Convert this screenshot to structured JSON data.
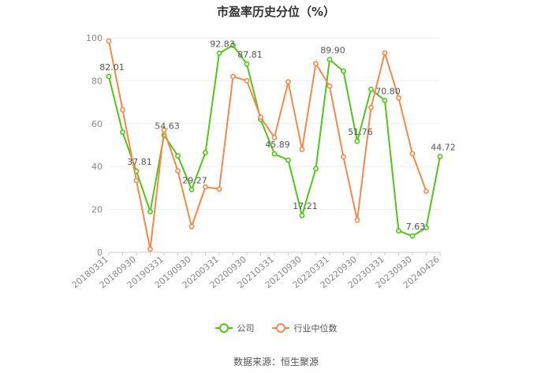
{
  "chart_data": {
    "type": "line",
    "title": "市盈率历史分位（%）",
    "source": "数据来源：恒生聚源",
    "ylim": [
      0,
      100
    ],
    "yticks": [
      0,
      20,
      40,
      60,
      80,
      100
    ],
    "x": [
      "20180331",
      "20180630",
      "20180930",
      "20181231",
      "20190331",
      "20190630",
      "20190930",
      "20191231",
      "20200331",
      "20200630",
      "20200930",
      "20201231",
      "20210331",
      "20210630",
      "20210930",
      "20211231",
      "20220331",
      "20220630",
      "20220930",
      "20221231",
      "20230331",
      "20230630",
      "20230930",
      "20231231",
      "20240426"
    ],
    "xticks": [
      "20180331",
      "20180930",
      "20190331",
      "20190930",
      "20200331",
      "20200930",
      "20210331",
      "20210930",
      "20220331",
      "20220930",
      "20230331",
      "20230930",
      "20240426"
    ],
    "grid": true,
    "legend_position": "bottom",
    "series": [
      {
        "name": "公司",
        "color": "#52c41a",
        "values": [
          82.01,
          56,
          37.81,
          19,
          54.63,
          45,
          29.27,
          46.5,
          92.83,
          96.5,
          87.81,
          62,
          45.89,
          43,
          17.21,
          39,
          89.9,
          84.5,
          51.76,
          76,
          70.8,
          10,
          7.63,
          11.5,
          44.72
        ]
      },
      {
        "name": "行业中位数",
        "color": "#f5884b",
        "values": [
          98.5,
          66.5,
          33.5,
          1.5,
          57,
          38,
          12,
          30.5,
          29.5,
          82,
          80,
          63,
          53.5,
          79.5,
          48,
          88,
          77.5,
          44.5,
          15,
          67.5,
          93,
          72,
          46,
          28.5,
          null
        ]
      }
    ],
    "annotations": [
      {
        "series": 0,
        "index": 0,
        "text": "82.01"
      },
      {
        "series": 0,
        "index": 2,
        "text": "37.81"
      },
      {
        "series": 0,
        "index": 4,
        "text": "54.63"
      },
      {
        "series": 0,
        "index": 6,
        "text": "29.27"
      },
      {
        "series": 0,
        "index": 8,
        "text": "92.83"
      },
      {
        "series": 0,
        "index": 10,
        "text": "87.81"
      },
      {
        "series": 0,
        "index": 12,
        "text": "45.89"
      },
      {
        "series": 0,
        "index": 14,
        "text": "17.21"
      },
      {
        "series": 0,
        "index": 16,
        "text": "89.90"
      },
      {
        "series": 0,
        "index": 18,
        "text": "51.76"
      },
      {
        "series": 0,
        "index": 20,
        "text": "70.80"
      },
      {
        "series": 0,
        "index": 22,
        "text": "7.63"
      },
      {
        "series": 0,
        "index": 24,
        "text": "44.72"
      }
    ]
  }
}
